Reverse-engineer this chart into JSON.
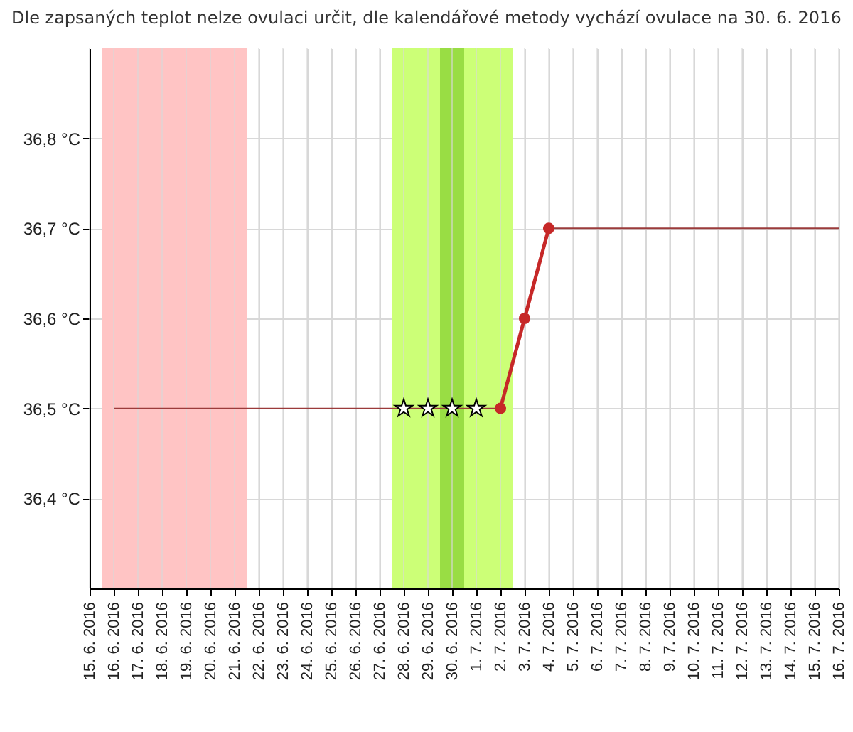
{
  "chart_data": {
    "type": "line",
    "title": "Dle zapsaných teplot nelze ovulaci určit, dle kalendářové metody vychází ovulace na 30. 6. 2016",
    "categories": [
      "15. 6. 2016",
      "16. 6. 2016",
      "17. 6. 2016",
      "18. 6. 2016",
      "19. 6. 2016",
      "20. 6. 2016",
      "21. 6. 2016",
      "22. 6. 2016",
      "23. 6. 2016",
      "24. 6. 2016",
      "25. 6. 2016",
      "26. 6. 2016",
      "27. 6. 2016",
      "28. 6. 2016",
      "29. 6. 2016",
      "30. 6. 2016",
      "1. 7. 2016",
      "2. 7. 2016",
      "3. 7. 2016",
      "4. 7. 2016",
      "5. 7. 2016",
      "6. 7. 2016",
      "7. 7. 2016",
      "8. 7. 2016",
      "9. 7. 2016",
      "10. 7. 2016",
      "11. 7. 2016",
      "12. 7. 2016",
      "13. 7. 2016",
      "14. 7. 2016",
      "15. 7. 2016",
      "16. 7. 2016"
    ],
    "series": [
      {
        "color": "#9b3b3b",
        "marker": "none",
        "values": [
          null,
          36.5,
          36.5,
          36.5,
          36.5,
          36.5,
          36.5,
          36.5,
          36.5,
          36.5,
          36.5,
          36.5,
          36.5,
          36.5,
          36.5,
          36.5,
          36.5,
          36.5,
          null,
          36.7,
          36.7,
          36.7,
          36.7,
          36.7,
          36.7,
          36.7,
          36.7,
          36.7,
          36.7,
          36.7,
          36.7,
          36.7
        ]
      },
      {
        "color": "#c62828",
        "marker": "circle",
        "values": [
          null,
          null,
          null,
          null,
          null,
          null,
          null,
          null,
          null,
          null,
          null,
          null,
          null,
          null,
          null,
          null,
          null,
          36.5,
          36.6,
          36.7,
          null,
          null,
          null,
          null,
          null,
          null,
          null,
          null,
          null,
          null,
          null,
          null
        ]
      },
      {
        "type": "scatter",
        "color": "#ffffff",
        "marker": "star",
        "values": [
          null,
          null,
          null,
          null,
          null,
          null,
          null,
          null,
          null,
          null,
          null,
          null,
          null,
          36.5,
          36.5,
          36.5,
          36.5,
          null,
          null,
          null,
          null,
          null,
          null,
          null,
          null,
          null,
          null,
          null,
          null,
          null,
          null,
          null
        ]
      }
    ],
    "bands": [
      {
        "axis": "x",
        "from": "16. 6. 2016",
        "to": "21. 6. 2016",
        "color": "#ffc4c4"
      },
      {
        "axis": "x",
        "from": "28. 6. 2016",
        "to": "2. 7. 2016",
        "color": "#ccff77"
      },
      {
        "axis": "x",
        "from": "30. 6. 2016",
        "to": "30. 6. 2016",
        "color": "#99dd44"
      }
    ],
    "ylim": [
      36.3,
      36.9
    ],
    "yticks": [
      {
        "value": 36.4,
        "label": "36,4 °C"
      },
      {
        "value": 36.5,
        "label": "36,5 °C"
      },
      {
        "value": 36.6,
        "label": "36,6 °C"
      },
      {
        "value": 36.7,
        "label": "36,7 °C"
      },
      {
        "value": 36.8,
        "label": "36,8 °C"
      }
    ],
    "grid": true
  }
}
